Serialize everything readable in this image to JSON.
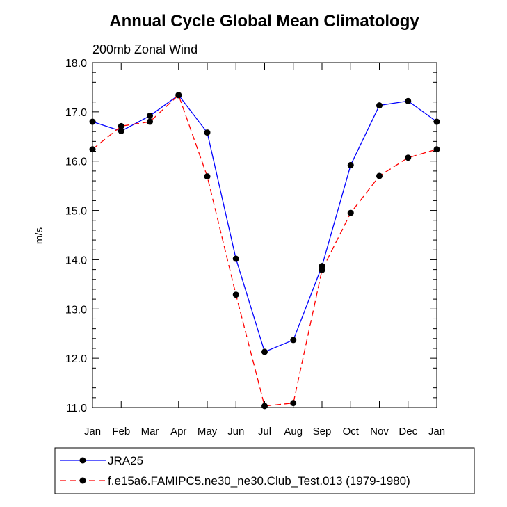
{
  "chart_data": {
    "type": "line",
    "title": "Annual Cycle Global Mean Climatology",
    "subtitle": "200mb Zonal Wind",
    "xlabel": "",
    "ylabel": "m/s",
    "categories": [
      "Jan",
      "Feb",
      "Mar",
      "Apr",
      "May",
      "Jun",
      "Jul",
      "Aug",
      "Sep",
      "Oct",
      "Nov",
      "Dec",
      "Jan"
    ],
    "ylim": [
      11.0,
      18.0
    ],
    "yticks": [
      "11.0",
      "12.0",
      "13.0",
      "14.0",
      "15.0",
      "16.0",
      "17.0",
      "18.0"
    ],
    "series": [
      {
        "name": "JRA25",
        "color": "#0000ff",
        "dash": "solid",
        "values": [
          16.8,
          16.61,
          16.92,
          17.34,
          16.58,
          14.02,
          12.13,
          12.37,
          13.87,
          15.92,
          17.13,
          17.22,
          16.8
        ]
      },
      {
        "name": "f.e15a6.FAMIPC5.ne30_ne30.Club_Test.013 (1979-1980)",
        "color": "#ff0000",
        "dash": "dashed",
        "values": [
          16.24,
          16.71,
          16.8,
          17.34,
          15.69,
          13.29,
          11.03,
          11.09,
          13.79,
          14.95,
          15.7,
          16.07,
          16.24
        ]
      }
    ],
    "legend_position": "bottom"
  }
}
